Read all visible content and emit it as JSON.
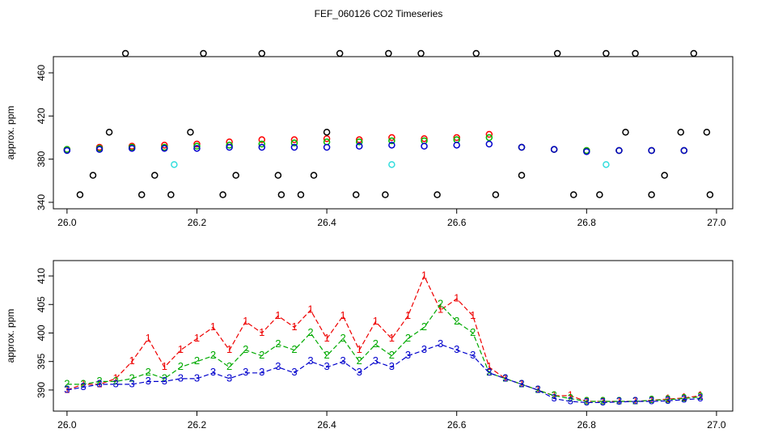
{
  "title": "FEF_060126  CO2 Timeseries",
  "chart_data": [
    {
      "type": "scatter",
      "y_label": "approx. ppm",
      "xlim": [
        25.979,
        27.025
      ],
      "ylim": [
        334,
        475
      ],
      "xticks": [
        {
          "value": 26,
          "label": "26.0"
        },
        26.2,
        26.4,
        26.6,
        26.8,
        {
          "value": 27,
          "label": "27.0"
        }
      ],
      "yticks": [
        340,
        380,
        420,
        460
      ],
      "series": [
        {
          "color": "#ff0000",
          "x": [
            26.0,
            26.05,
            26.1,
            26.15,
            26.2,
            26.25,
            26.3,
            26.35,
            26.4,
            26.45,
            26.5,
            26.55,
            26.6,
            26.65,
            26.7,
            26.75,
            26.8,
            26.85,
            26.9,
            26.95
          ],
          "values": [
            389,
            391,
            392,
            393,
            394,
            396,
            398,
            398,
            399,
            398,
            400,
            399,
            400,
            403,
            391,
            389,
            388,
            388,
            388,
            388
          ]
        },
        {
          "color": "#00bb00",
          "x": [
            26.0,
            26.05,
            26.1,
            26.15,
            26.2,
            26.25,
            26.3,
            26.35,
            26.4,
            26.45,
            26.5,
            26.55,
            26.6,
            26.65,
            26.7,
            26.75,
            26.8,
            26.85,
            26.9,
            26.95
          ],
          "values": [
            389,
            390,
            391,
            391,
            392,
            393,
            394,
            395,
            396,
            396,
            397,
            397,
            398,
            400,
            391,
            389,
            388,
            388,
            388,
            388
          ]
        },
        {
          "color": "#0000cc",
          "x": [
            26.0,
            26.05,
            26.1,
            26.15,
            26.2,
            26.25,
            26.3,
            26.35,
            26.4,
            26.45,
            26.5,
            26.55,
            26.6,
            26.65,
            26.7,
            26.75,
            26.8,
            26.85,
            26.9,
            26.95
          ],
          "values": [
            388,
            389,
            390,
            390,
            390,
            391,
            391,
            391,
            391,
            392,
            393,
            392,
            393,
            394,
            391,
            389,
            387,
            388,
            388,
            388
          ]
        },
        {
          "color": "#000000",
          "x": [
            26.02,
            26.04,
            26.065,
            26.09,
            26.115,
            26.135,
            26.16,
            26.19,
            26.21,
            26.24,
            26.26,
            26.3,
            26.325,
            26.33,
            26.36,
            26.38,
            26.4,
            26.42,
            26.445,
            26.49,
            26.495,
            26.545,
            26.57,
            26.63,
            26.66,
            26.7,
            26.755,
            26.78,
            26.82,
            26.83,
            26.86,
            26.875,
            26.9,
            26.92,
            26.945,
            26.965,
            26.985,
            26.99
          ],
          "values": [
            347,
            365,
            405,
            478,
            347,
            365,
            347,
            405,
            478,
            347,
            365,
            478,
            365,
            347,
            347,
            365,
            405,
            478,
            347,
            347,
            478,
            478,
            347,
            478,
            347,
            365,
            478,
            347,
            347,
            478,
            405,
            478,
            347,
            365,
            405,
            478,
            405,
            347
          ]
        },
        {
          "color": "#33dddd",
          "x": [
            26.165,
            26.5,
            26.83
          ],
          "values": [
            375,
            375,
            375
          ]
        }
      ]
    },
    {
      "type": "line",
      "y_label": "approx. ppm",
      "xlim": [
        25.979,
        27.025
      ],
      "ylim": [
        386.3,
        412.7
      ],
      "xticks": [
        {
          "value": 26,
          "label": "26.0"
        },
        26.2,
        26.4,
        26.6,
        26.8,
        {
          "value": 27,
          "label": "27.0"
        }
      ],
      "yticks": [
        390,
        395,
        400,
        405,
        410
      ],
      "x": [
        26.0,
        26.025,
        26.05,
        26.075,
        26.1,
        26.125,
        26.15,
        26.175,
        26.2,
        26.225,
        26.25,
        26.275,
        26.3,
        26.325,
        26.35,
        26.375,
        26.4,
        26.425,
        26.45,
        26.475,
        26.5,
        26.525,
        26.55,
        26.575,
        26.6,
        26.625,
        26.65,
        26.675,
        26.7,
        26.725,
        26.75,
        26.775,
        26.8,
        26.825,
        26.85,
        26.875,
        26.9,
        26.925,
        26.95,
        26.975
      ],
      "series": [
        {
          "name": "1",
          "color": "#ee0000",
          "values": [
            390,
            391,
            391,
            392,
            395,
            399,
            394,
            397,
            399,
            401,
            397,
            402,
            400,
            403,
            401,
            404,
            399,
            403,
            397,
            402,
            399,
            403,
            410,
            404,
            406,
            403,
            394,
            392,
            391,
            390,
            389,
            389,
            388,
            388,
            388,
            388,
            388.2,
            388.4,
            388.6,
            389
          ]
        },
        {
          "name": "2",
          "color": "#00aa00",
          "values": [
            391,
            391,
            391.5,
            391.5,
            392,
            393,
            392,
            394,
            395,
            396,
            394,
            397,
            396,
            398,
            397,
            400,
            396,
            399,
            395,
            398,
            396,
            399,
            401,
            405,
            402,
            400,
            393,
            392,
            391,
            390,
            389,
            388.5,
            388,
            388,
            388,
            388,
            388.2,
            388.3,
            388.5,
            388.8
          ]
        },
        {
          "name": "3",
          "color": "#0000cc",
          "values": [
            390,
            390.5,
            391,
            391,
            391,
            391.5,
            391.5,
            392,
            392,
            393,
            392,
            393,
            393,
            394,
            393,
            395,
            394,
            395,
            393,
            395,
            394,
            396,
            397,
            398,
            397,
            396,
            393,
            392,
            391,
            390,
            388.5,
            388,
            387.8,
            387.8,
            387.9,
            388,
            388,
            388.1,
            388.3,
            388.5
          ]
        }
      ]
    }
  ]
}
